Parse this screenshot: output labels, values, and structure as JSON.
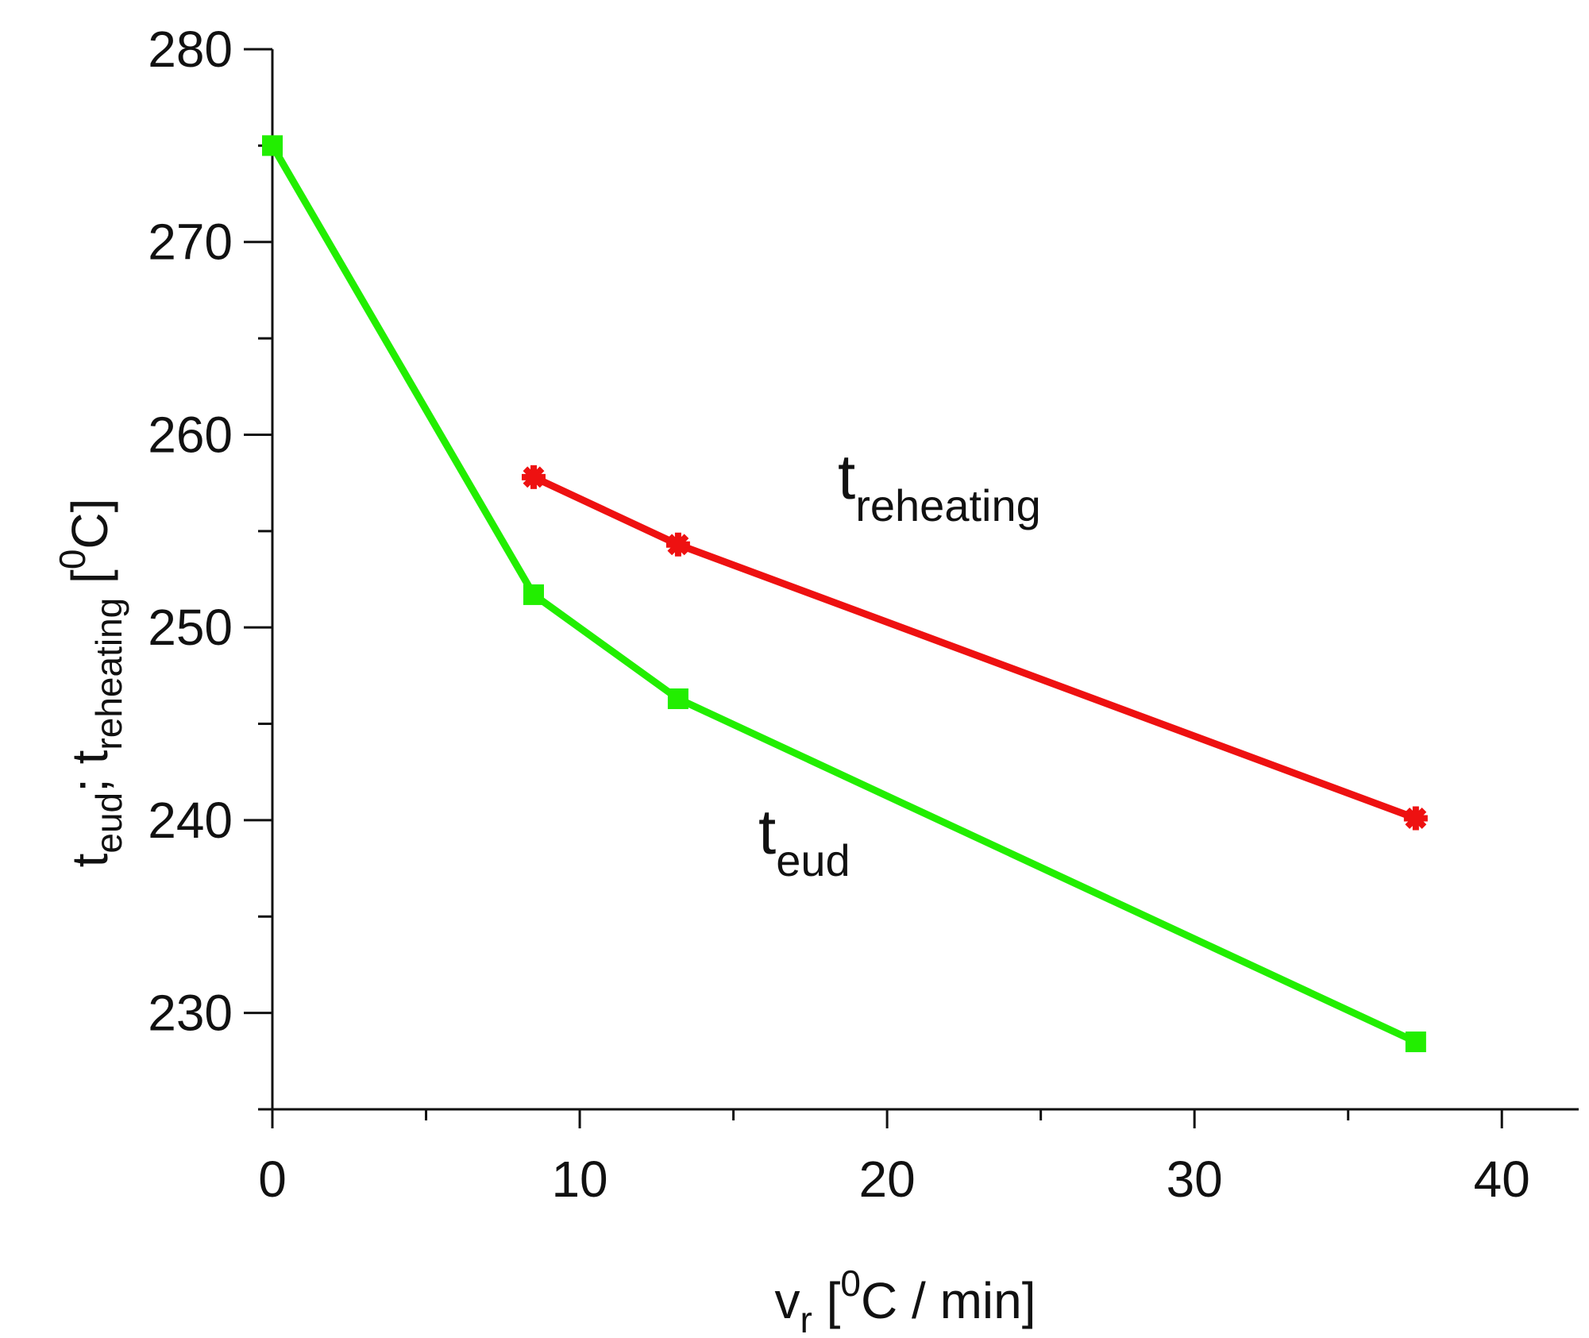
{
  "chart_data": {
    "type": "line",
    "title": "",
    "x_axis": {
      "label_main": "v",
      "label_sub": "r",
      "label_open": " [",
      "label_sup": "0",
      "label_rest": "C / min]",
      "range": [
        0,
        42.5
      ],
      "major_ticks": [
        0,
        10,
        20,
        30,
        40
      ],
      "tick_labels": [
        "0",
        "10",
        "20",
        "30",
        "40"
      ],
      "minor_ticks": [
        5,
        15,
        25,
        35
      ]
    },
    "y_axis": {
      "label_t1": "t",
      "label_sub1": "eud",
      "label_sep": "; t",
      "label_sub2": "reheating",
      "label_open": " [",
      "label_sup": "0",
      "label_rest": "C]",
      "range": [
        225,
        280
      ],
      "major_ticks": [
        230,
        240,
        250,
        260,
        270,
        280
      ],
      "tick_labels": [
        "230",
        "240",
        "250",
        "260",
        "270",
        "280"
      ],
      "minor_ticks": [
        225,
        235,
        245,
        255,
        265,
        275
      ]
    },
    "grid": false,
    "series": [
      {
        "name": "t_eud",
        "label_main": "t",
        "label_sub": "eud",
        "color": "#22ee00",
        "marker": "square",
        "x": [
          0,
          8.5,
          13.2,
          37.2
        ],
        "y": [
          275,
          251.7,
          246.3,
          228.5
        ]
      },
      {
        "name": "t_reheating",
        "label_main": "t",
        "label_sub": "reheating",
        "color": "#ee1111",
        "marker": "star",
        "x": [
          8.5,
          13.2,
          37.2
        ],
        "y": [
          257.8,
          254.3,
          240.1
        ]
      }
    ]
  }
}
